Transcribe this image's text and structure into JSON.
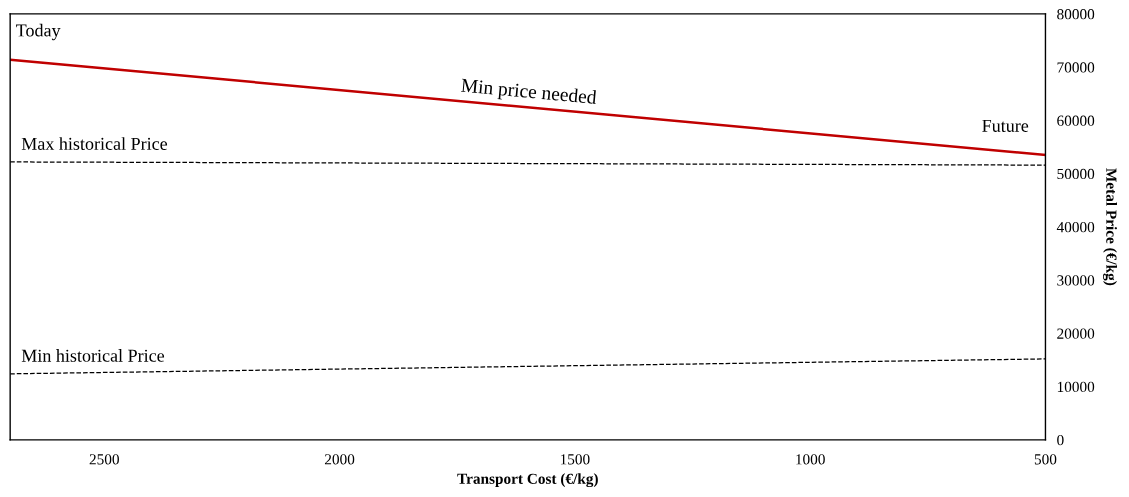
{
  "chart_data": {
    "type": "line",
    "xlabel": "Transport Cost (€/kg)",
    "ylabel": "Metal Price (€/kg)",
    "xlim": [
      2700,
      500
    ],
    "xticks": [
      2500,
      2000,
      1500,
      1000,
      500
    ],
    "ylim": [
      0,
      80000
    ],
    "yticks": [
      0,
      10000,
      20000,
      30000,
      40000,
      50000,
      60000,
      70000,
      80000
    ],
    "x": [
      2700,
      500
    ],
    "grid": false,
    "legend": false,
    "marker": "none",
    "series": [
      {
        "name": "Min price needed",
        "color": "#c00000",
        "values": [
          71400,
          53500
        ],
        "line_style": "solid"
      },
      {
        "name": "Max historical Price",
        "color": "#000000",
        "values": [
          52200,
          51600
        ],
        "line_style": "dashed"
      },
      {
        "name": "Min historical Price",
        "color": "#000000",
        "values": [
          12400,
          15200
        ],
        "line_style": "dashed"
      }
    ],
    "annotations": [
      {
        "text": "Today",
        "x": 2700,
        "y": 71400
      },
      {
        "text": "Future",
        "x": 500,
        "y": 53500
      }
    ]
  }
}
